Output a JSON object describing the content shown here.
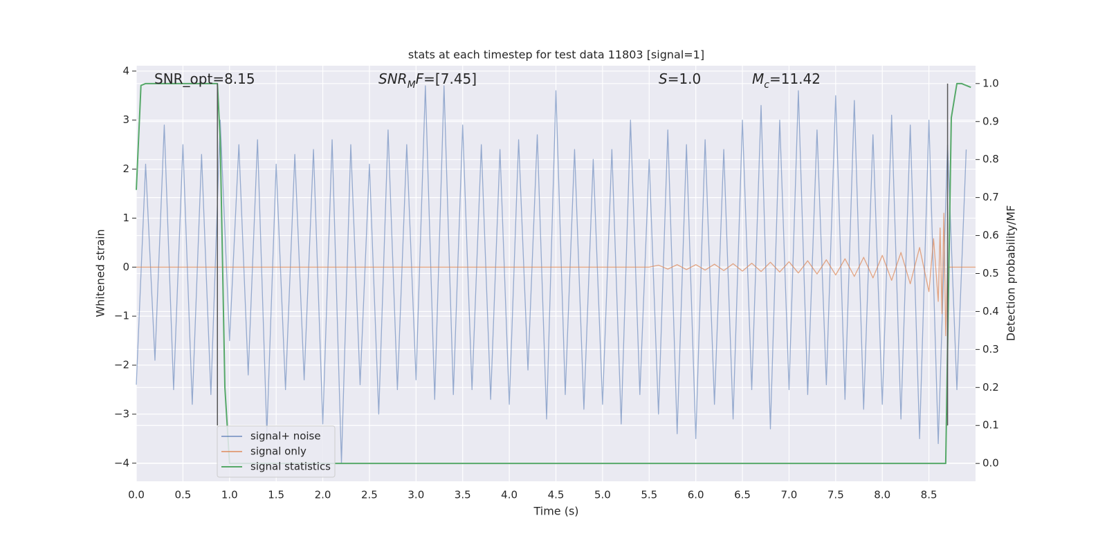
{
  "chart_data": {
    "type": "line",
    "title": "stats at each timestep for test data 11803 [signal=1]",
    "xlabel": "Time (s)",
    "ylabel": "Whitened strain",
    "y2label": "Detection probability/MF",
    "annotations": [
      {
        "parts": [
          {
            "text": "SNR_opt=8.15"
          }
        ]
      },
      {
        "parts": [
          {
            "text": "SNR",
            "italic": true
          },
          {
            "text": "M",
            "italic": true,
            "sub": true
          },
          {
            "text": "F",
            "italic": true
          },
          {
            "text": "=[7.45]"
          }
        ]
      },
      {
        "parts": [
          {
            "text": "S",
            "italic": true
          },
          {
            "text": "=1.0"
          }
        ]
      },
      {
        "parts": [
          {
            "text": "M",
            "italic": true
          },
          {
            "text": "c",
            "italic": true,
            "sub": true
          },
          {
            "text": "=11.42"
          }
        ]
      }
    ],
    "xlim": [
      0,
      9.0
    ],
    "ylim": [
      -4.37,
      4.11
    ],
    "y2lim": [
      -0.047,
      1.047
    ],
    "xticks": [
      {
        "value": 0,
        "label": "0.0"
      },
      0.5,
      {
        "value": 1,
        "label": "1.0"
      },
      1.5,
      {
        "value": 2,
        "label": "2.0"
      },
      2.5,
      {
        "value": 3,
        "label": "3.0"
      },
      3.5,
      {
        "value": 4,
        "label": "4.0"
      },
      4.5,
      {
        "value": 5,
        "label": "5.0"
      },
      5.5,
      {
        "value": 6,
        "label": "6.0"
      },
      6.5,
      {
        "value": 7,
        "label": "7.0"
      },
      7.5,
      {
        "value": 8,
        "label": "8.0"
      },
      8.5
    ],
    "yticks": [
      {
        "value": -4,
        "label": "−4"
      },
      {
        "value": -3,
        "label": "−3"
      },
      {
        "value": -2,
        "label": "−2"
      },
      {
        "value": -1,
        "label": "−1"
      },
      0,
      1,
      2,
      3,
      4
    ],
    "y2ticks": [
      {
        "value": 0,
        "label": "0.0"
      },
      0.1,
      0.2,
      0.3,
      0.4,
      0.5,
      0.6,
      0.7,
      0.8,
      0.9,
      {
        "value": 1,
        "label": "1.0"
      }
    ],
    "grid": true,
    "legend": "lower left",
    "vlines": [
      0.87,
      8.7
    ],
    "series": [
      {
        "name": "signal+ noise",
        "color": "#4c72b0",
        "x": [
          0.0,
          0.1,
          0.2,
          0.3,
          0.4,
          0.5,
          0.6,
          0.7,
          0.8,
          0.9,
          1.0,
          1.1,
          1.2,
          1.3,
          1.4,
          1.5,
          1.6,
          1.7,
          1.8,
          1.9,
          2.0,
          2.1,
          2.2,
          2.3,
          2.4,
          2.5,
          2.6,
          2.7,
          2.8,
          2.9,
          3.0,
          3.1,
          3.2,
          3.3,
          3.4,
          3.5,
          3.6,
          3.7,
          3.8,
          3.9,
          4.0,
          4.1,
          4.2,
          4.3,
          4.4,
          4.5,
          4.6,
          4.7,
          4.8,
          4.9,
          5.0,
          5.1,
          5.2,
          5.3,
          5.4,
          5.5,
          5.6,
          5.7,
          5.8,
          5.9,
          6.0,
          6.1,
          6.2,
          6.3,
          6.4,
          6.5,
          6.6,
          6.7,
          6.8,
          6.9,
          7.0,
          7.1,
          7.2,
          7.3,
          7.4,
          7.5,
          7.6,
          7.7,
          7.8,
          7.9,
          8.0,
          8.1,
          8.2,
          8.3,
          8.4,
          8.5,
          8.6,
          8.7,
          8.8,
          8.9
        ],
        "values": [
          -2.4,
          2.1,
          -1.9,
          2.9,
          -2.5,
          2.5,
          -2.8,
          2.3,
          -2.6,
          3.0,
          -1.5,
          2.5,
          -2.2,
          2.6,
          -3.4,
          2.1,
          -2.5,
          2.3,
          -2.3,
          2.4,
          -3.2,
          2.6,
          -4.0,
          2.5,
          -2.4,
          2.1,
          -3.0,
          2.8,
          -2.5,
          2.5,
          -2.3,
          3.7,
          -2.7,
          3.7,
          -2.6,
          2.9,
          -2.5,
          2.5,
          -2.7,
          2.4,
          -2.8,
          2.6,
          -2.1,
          2.7,
          -3.1,
          3.6,
          -2.6,
          2.4,
          -2.9,
          2.2,
          -2.8,
          2.4,
          -3.2,
          3.0,
          -2.6,
          2.2,
          -3.0,
          2.8,
          -3.4,
          2.5,
          -3.5,
          2.6,
          -2.8,
          2.4,
          -3.1,
          3.0,
          -2.5,
          3.3,
          -3.3,
          3.0,
          -2.5,
          3.6,
          -2.6,
          2.8,
          -2.4,
          3.5,
          -2.7,
          3.4,
          -2.9,
          2.7,
          -2.8,
          3.1,
          -3.1,
          2.9,
          -3.5,
          3.0,
          -3.6,
          2.5,
          -2.5,
          2.4
        ]
      },
      {
        "name": "signal only",
        "color": "#dd8452",
        "x": [
          0.0,
          5.5,
          5.6,
          5.7,
          5.8,
          5.9,
          6.0,
          6.1,
          6.2,
          6.3,
          6.4,
          6.5,
          6.6,
          6.7,
          6.8,
          6.9,
          7.0,
          7.1,
          7.2,
          7.3,
          7.4,
          7.5,
          7.6,
          7.7,
          7.8,
          7.9,
          8.0,
          8.1,
          8.2,
          8.3,
          8.4,
          8.5,
          8.55,
          8.6,
          8.62,
          8.64,
          8.66,
          8.68,
          8.7,
          9.0
        ],
        "values": [
          0,
          0,
          0.04,
          -0.04,
          0.05,
          -0.05,
          0.05,
          -0.06,
          0.06,
          -0.07,
          0.07,
          -0.08,
          0.08,
          -0.09,
          0.1,
          -0.1,
          0.11,
          -0.12,
          0.13,
          -0.14,
          0.15,
          -0.16,
          0.17,
          -0.19,
          0.2,
          -0.22,
          0.24,
          -0.27,
          0.3,
          -0.34,
          0.4,
          -0.5,
          0.58,
          -0.7,
          0.8,
          -0.95,
          1.1,
          -1.4,
          0,
          0
        ]
      },
      {
        "name": "signal statistics",
        "color": "#55a868",
        "axis": "y2",
        "x": [
          0.0,
          0.05,
          0.1,
          0.87,
          0.9,
          0.95,
          1.0,
          8.68,
          8.74,
          8.8,
          8.85,
          8.95
        ],
        "values": [
          0.72,
          0.995,
          1.0,
          1.0,
          0.85,
          0.2,
          0.0,
          0.0,
          0.91,
          1.0,
          1.0,
          0.99
        ]
      }
    ]
  }
}
